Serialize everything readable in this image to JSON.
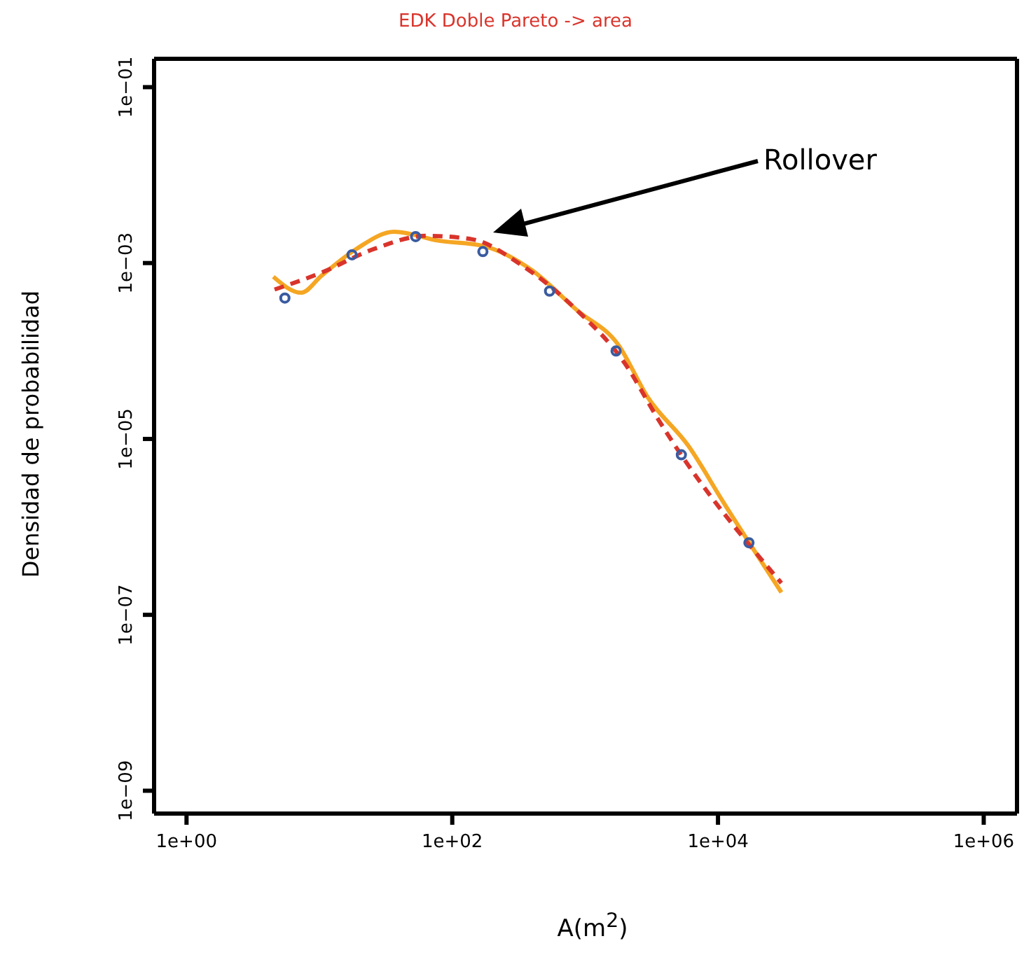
{
  "chart_data": {
    "type": "line",
    "title": "EDK Doble Pareto -> area",
    "xlabel": "A(m$^{2}$)",
    "ylabel": "Densidad de probabilidad",
    "log": "xy",
    "xlim": [
      0.57,
      1780000
    ],
    "ylim": [
      5.5e-10,
      0.21
    ],
    "xticks": [
      {
        "value": 1,
        "label": "1e+00"
      },
      {
        "value": 100,
        "label": "1e+02"
      },
      {
        "value": 10000,
        "label": "1e+04"
      },
      {
        "value": 1000000,
        "label": "1e+06"
      }
    ],
    "yticks": [
      {
        "value": 1e-09,
        "label": "1e−09"
      },
      {
        "value": 1e-07,
        "label": "1e−07"
      },
      {
        "value": 1e-05,
        "label": "1e−05"
      },
      {
        "value": 0.001,
        "label": "1e−03"
      },
      {
        "value": 0.1,
        "label": "1e−01"
      }
    ],
    "annotations": [
      "Rollover"
    ],
    "series": [
      {
        "type": "scatter",
        "color": "#3a5ba0",
        "marker": "circle",
        "x": [
          5.5,
          17.6,
          53,
          170,
          540,
          1710,
          5300,
          17100
        ],
        "values": [
          0.0004,
          0.00124,
          0.002,
          0.00135,
          0.00048,
          0.0001,
          6.6e-06,
          6.6e-07
        ]
      },
      {
        "color": "#f5a623",
        "line_style": "solid",
        "marker": "none",
        "x": [
          4.5,
          7.3,
          10.4,
          19,
          36.6,
          78,
          175,
          393,
          870,
          1780,
          2950,
          6000,
          11000,
          30000
        ],
        "values": [
          0.0007,
          0.00046,
          0.00072,
          0.00145,
          0.00227,
          0.0018,
          0.00155,
          0.00084,
          0.00029,
          0.000117,
          3e-05,
          8.3e-06,
          1.9e-06,
          1.8e-07
        ]
      },
      {
        "color": "#d9342b",
        "line_style": "dashed",
        "marker": "none",
        "x": [
          4.6,
          10.4,
          25.9,
          64,
          142,
          321,
          870,
          1970,
          3610,
          4420,
          30000
        ],
        "values": [
          0.0005,
          0.00078,
          0.00145,
          0.00204,
          0.00186,
          0.00098,
          0.00029,
          7.4e-05,
          1.6e-05,
          9.9e-06,
          2.3e-07
        ]
      }
    ]
  }
}
